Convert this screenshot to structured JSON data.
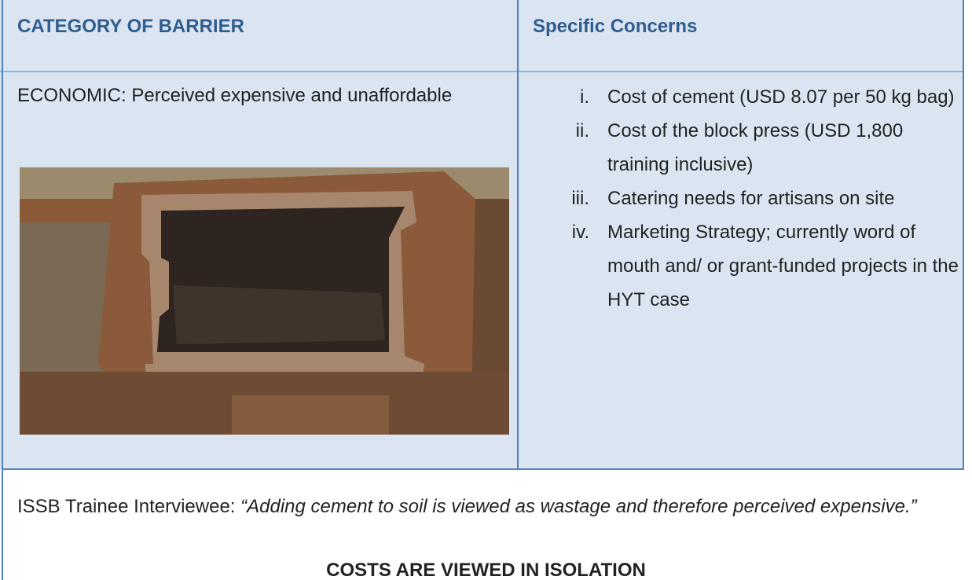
{
  "table": {
    "headers": [
      "CATEGORY OF BARRIER",
      "Specific Concerns"
    ],
    "barrier": "ECONOMIC: Perceived expensive and unaffordable",
    "concerns": [
      {
        "marker": "i.",
        "text": "Cost of cement (USD 8.07 per 50 kg bag)"
      },
      {
        "marker": "ii.",
        "text": "Cost of the block press (USD 1,800 training inclusive)"
      },
      {
        "marker": "iii.",
        "text": "Catering needs  for artisans on site"
      },
      {
        "marker": "iv.",
        "text": "Marketing Strategy; currently word of mouth and/ or grant-funded projects  in the HYT case"
      }
    ]
  },
  "quote": {
    "speaker": "ISSB Trainee Interviewee:",
    "text": "“Adding cement to soil is viewed as wastage and therefore perceived expensive.”"
  },
  "conclusion": "COSTS ARE VIEWED IN ISOLATION"
}
